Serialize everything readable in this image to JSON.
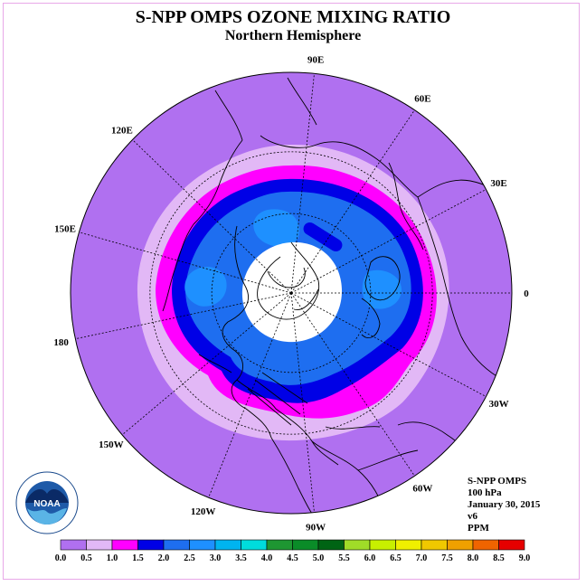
{
  "title": "S-NPP OMPS OZONE MIXING RATIO",
  "subtitle": "Northern Hemisphere",
  "longitude_labels": [
    "90E",
    "60E",
    "30E",
    "0",
    "30W",
    "60W",
    "90W",
    "120W",
    "150W",
    "180",
    "150E",
    "120E"
  ],
  "info": {
    "instrument": "S-NPP OMPS",
    "level": "100 hPa",
    "date": "January 30, 2015",
    "version": "v6",
    "units": "PPM"
  },
  "logo_text": "NOAA",
  "colorbar": {
    "ticks": [
      "0.0",
      "0.5",
      "1.0",
      "1.5",
      "2.0",
      "2.5",
      "3.0",
      "3.5",
      "4.0",
      "4.5",
      "5.0",
      "5.5",
      "6.0",
      "6.5",
      "7.0",
      "7.5",
      "8.0",
      "8.5",
      "9.0"
    ],
    "colors": [
      "#b070f0",
      "#e2b8f6",
      "#ff00ff",
      "#0000e6",
      "#1e6ef0",
      "#1e90ff",
      "#00b4f0",
      "#00dcdc",
      "#1e9632",
      "#0a8c28",
      "#006414",
      "#a0dc28",
      "#c8f000",
      "#f0f000",
      "#f0c800",
      "#f0a000",
      "#f06400",
      "#e60000",
      "#8c5030"
    ]
  },
  "colors": {
    "background_field": "#b070f0",
    "polar_night": "#ffffff",
    "coast": "#000000"
  }
}
